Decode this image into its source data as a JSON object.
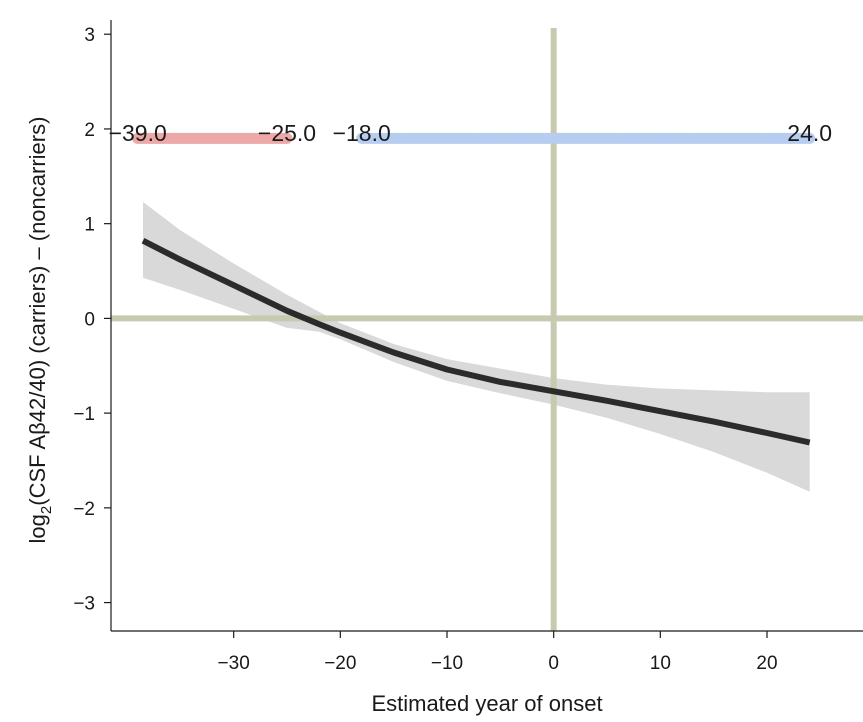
{
  "chart_data": {
    "type": "line",
    "xlabel": "Estimated year of onset",
    "ylabel_prefix": "log",
    "ylabel_subscript": "2",
    "ylabel_rest": "(CSF Aβ42/40) (carriers) – (noncarriers)",
    "xlim": [
      -41.5,
      29
    ],
    "ylim": [
      -3.3,
      3.15
    ],
    "xticks": [
      -30,
      -20,
      -10,
      0,
      10,
      20
    ],
    "xtick_labels": [
      "−30",
      "−20",
      "−10",
      "0",
      "10",
      "20"
    ],
    "yticks": [
      -3,
      -2,
      -1,
      0,
      1,
      2,
      3
    ],
    "ytick_labels": [
      "−3",
      "−2",
      "−1",
      "0",
      "1",
      "2",
      "3"
    ],
    "reference_lines": {
      "x": 0,
      "y": 0,
      "color": "#c7c9b0"
    },
    "series": [
      {
        "color": "#2b2b2b",
        "x": [
          -38.5,
          -35,
          -30,
          -25,
          -22,
          -20,
          -15,
          -10,
          -5,
          0,
          5,
          10,
          15,
          20,
          24
        ],
        "y": [
          0.82,
          0.62,
          0.35,
          0.08,
          -0.06,
          -0.15,
          -0.36,
          -0.54,
          -0.67,
          -0.77,
          -0.87,
          -0.98,
          -1.09,
          -1.21,
          -1.31
        ],
        "ci_lower": [
          0.43,
          0.3,
          0.1,
          -0.1,
          -0.14,
          -0.22,
          -0.46,
          -0.66,
          -0.79,
          -0.91,
          -1.05,
          -1.22,
          -1.41,
          -1.63,
          -1.83
        ],
        "ci_upper": [
          1.23,
          0.93,
          0.58,
          0.25,
          0.07,
          -0.05,
          -0.27,
          -0.43,
          -0.53,
          -0.63,
          -0.7,
          -0.74,
          -0.76,
          -0.78,
          -0.78
        ],
        "ci_color": "#d9d9d9"
      }
    ],
    "intervals": [
      {
        "start": -39.0,
        "end": -25.0,
        "start_label": "−39.0",
        "end_label": "−25.0",
        "y": 1.9,
        "color": "#eda8a8"
      },
      {
        "start": -18.0,
        "end": 24.0,
        "start_label": "−18.0",
        "end_label": "24.0",
        "y": 1.9,
        "color": "#b7cdf0"
      }
    ],
    "grid": false,
    "legend": "none"
  }
}
